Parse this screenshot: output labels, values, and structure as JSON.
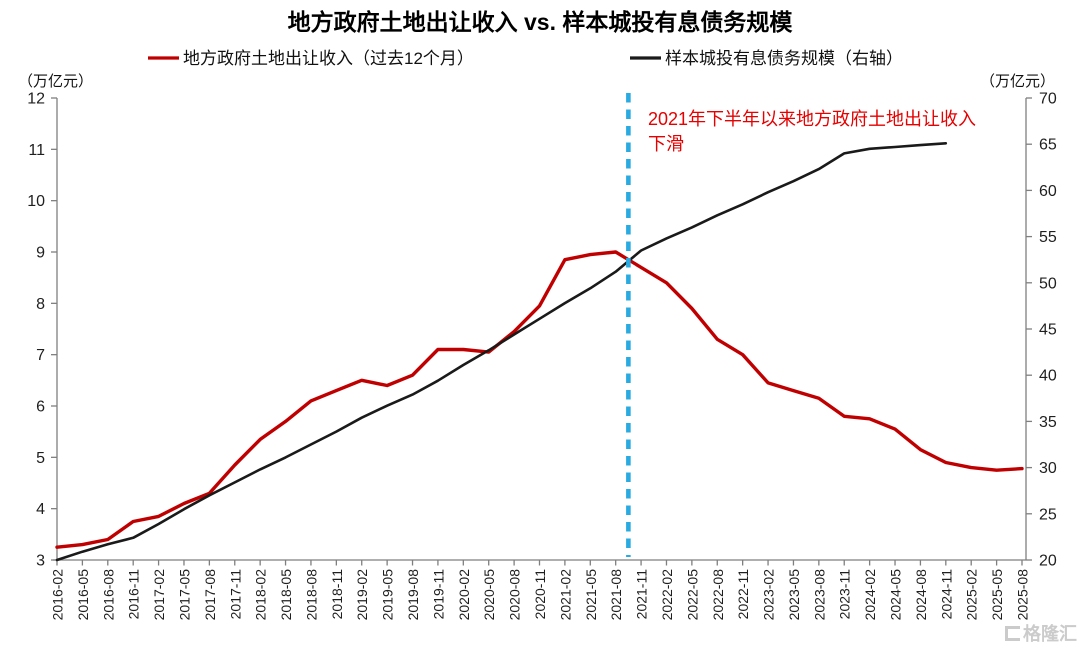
{
  "title": "地方政府土地出让收入 vs. 样本城投有息债务规模",
  "legend": [
    {
      "label": "地方政府土地出让收入（过去12个月）",
      "color": "#c00000"
    },
    {
      "label": "样本城投有息债务规模（右轴）",
      "color": "#1a1a1a"
    }
  ],
  "left_axis_unit": "（万亿元）",
  "right_axis_unit": "（万亿元）",
  "annotation": {
    "text": "2021年下半年以来地方政府土地出让收入下滑",
    "lines": [
      "2021年下半年以来地方政府土地出让收入",
      "下滑"
    ],
    "color": "#e60000"
  },
  "event_line": {
    "x_index": 22.5,
    "color": "#29abe2",
    "style": "dashed"
  },
  "watermark": "格隆汇",
  "chart_data": {
    "type": "line",
    "categories": [
      "2016-02",
      "2016-05",
      "2016-08",
      "2016-11",
      "2017-02",
      "2017-05",
      "2017-08",
      "2017-11",
      "2018-02",
      "2018-05",
      "2018-08",
      "2018-11",
      "2019-02",
      "2019-05",
      "2019-08",
      "2019-11",
      "2020-02",
      "2020-05",
      "2020-08",
      "2020-11",
      "2021-02",
      "2021-05",
      "2021-08",
      "2021-11",
      "2022-02",
      "2022-05",
      "2022-08",
      "2022-11",
      "2023-02",
      "2023-05",
      "2023-08",
      "2023-11",
      "2024-02",
      "2024-05",
      "2024-08",
      "2024-11",
      "2025-02",
      "2025-05",
      "2025-08"
    ],
    "series": [
      {
        "name": "地方政府土地出让收入（过去12个月）",
        "axis": "left",
        "color": "#c00000",
        "line_width": 3.4,
        "values": [
          3.25,
          3.3,
          3.4,
          3.75,
          3.85,
          4.1,
          4.3,
          4.85,
          5.35,
          5.7,
          6.1,
          6.3,
          6.5,
          6.4,
          6.6,
          7.1,
          7.1,
          7.05,
          7.45,
          7.95,
          8.85,
          8.95,
          9.0,
          8.7,
          8.4,
          7.9,
          7.3,
          7.0,
          6.45,
          6.3,
          6.15,
          5.8,
          5.75,
          5.55,
          5.15,
          4.9,
          4.8,
          4.75,
          4.78
        ]
      },
      {
        "name": "样本城投有息债务规模（右轴）",
        "axis": "right",
        "color": "#1a1a1a",
        "line_width": 2.6,
        "values": [
          20.0,
          20.9,
          21.7,
          22.4,
          23.9,
          25.5,
          27.0,
          28.4,
          29.8,
          31.1,
          32.5,
          33.9,
          35.4,
          36.7,
          37.9,
          39.4,
          41.1,
          42.7,
          44.4,
          46.1,
          47.8,
          49.4,
          51.2,
          53.5,
          54.8,
          56.0,
          57.3,
          58.5,
          59.8,
          61.0,
          62.3,
          64.0,
          64.5,
          64.7,
          64.9,
          65.1,
          null,
          null,
          null
        ]
      }
    ],
    "y_left": {
      "min": 3,
      "max": 12,
      "step": 1,
      "unit": "万亿元"
    },
    "y_right": {
      "min": 20,
      "max": 70,
      "step": 5,
      "unit": "万亿元"
    },
    "grid": false,
    "legend_position": "top"
  }
}
